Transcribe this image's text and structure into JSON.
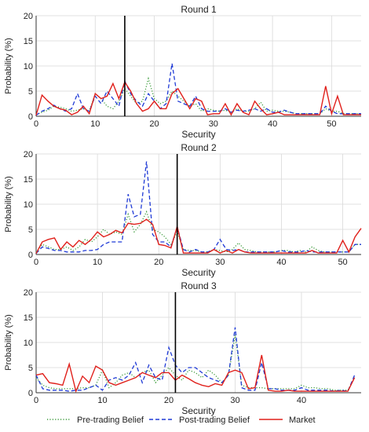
{
  "legend": {
    "position": "bottom",
    "entries": [
      {
        "label": "Pre-trading Belief",
        "color": "#3a9a3a",
        "style": "dotted"
      },
      {
        "label": "Post-trading Belief",
        "color": "#1f3ad6",
        "style": "dashed"
      },
      {
        "label": "Market",
        "color": "#e0201b",
        "style": "solid"
      }
    ]
  },
  "chart_data": [
    {
      "type": "line",
      "title": "Round 1",
      "xlabel": "Security",
      "ylabel": "Probability (%)",
      "xlim": [
        0,
        55
      ],
      "ylim": [
        0,
        20
      ],
      "xticks": [
        0,
        10,
        20,
        30,
        40,
        50
      ],
      "yticks": [
        0,
        5,
        10,
        15,
        20
      ],
      "grid": true,
      "vline": 15,
      "series": [
        {
          "name": "Pre-trading Belief",
          "color": "#3a9a3a",
          "style": "dotted",
          "values": [
            0.3,
            0.8,
            1.2,
            2.0,
            1.8,
            1.5,
            1.0,
            1.2,
            1.5,
            1.0,
            4.5,
            3.5,
            2.0,
            1.5,
            3.0,
            5.5,
            4.0,
            2.5,
            3.0,
            7.5,
            3.5,
            2.5,
            3.0,
            5.0,
            4.0,
            3.0,
            2.0,
            2.5,
            1.0,
            1.5,
            1.2,
            1.0,
            1.2,
            0.8,
            1.5,
            1.0,
            1.0,
            1.5,
            2.8,
            1.0,
            1.2,
            1.0,
            1.0,
            0.8,
            0.5,
            0.5,
            0.5,
            0.5,
            0.5,
            1.5,
            1.0,
            1.0,
            0.5,
            0.5,
            0.5,
            0.5
          ]
        },
        {
          "name": "Post-trading Belief",
          "color": "#1f3ad6",
          "style": "dashed",
          "values": [
            0.2,
            1.0,
            1.5,
            2.2,
            1.5,
            1.0,
            1.5,
            4.5,
            1.5,
            1.0,
            4.0,
            2.5,
            5.0,
            3.5,
            2.0,
            7.0,
            4.5,
            3.0,
            2.0,
            4.5,
            3.0,
            1.5,
            2.5,
            10.5,
            3.0,
            2.5,
            2.0,
            4.0,
            1.5,
            1.0,
            1.0,
            1.0,
            1.5,
            0.8,
            1.2,
            1.0,
            1.2,
            1.5,
            1.0,
            1.5,
            0.8,
            0.8,
            1.2,
            0.8,
            0.5,
            0.5,
            0.5,
            0.5,
            0.5,
            2.0,
            1.0,
            0.5,
            0.5,
            0.5,
            0.5,
            0.5
          ]
        },
        {
          "name": "Market",
          "color": "#e0201b",
          "style": "solid",
          "values": [
            0.2,
            4.2,
            3.0,
            2.0,
            1.5,
            1.2,
            0.3,
            0.8,
            2.0,
            0.5,
            4.5,
            3.5,
            4.0,
            6.5,
            3.5,
            6.8,
            5.0,
            2.5,
            1.0,
            1.5,
            3.0,
            1.5,
            1.5,
            4.5,
            5.5,
            3.5,
            1.5,
            3.5,
            3.0,
            0.3,
            0.5,
            0.5,
            2.5,
            0.3,
            2.5,
            0.8,
            0.3,
            3.0,
            1.5,
            0.3,
            0.5,
            0.8,
            0.3,
            0.3,
            0.3,
            0.3,
            0.3,
            0.3,
            0.3,
            6.0,
            0.5,
            4.0,
            0.3,
            0.3,
            0.3,
            0.3
          ]
        }
      ]
    },
    {
      "type": "line",
      "title": "Round 2",
      "xlabel": "Security",
      "ylabel": "Probability (%)",
      "xlim": [
        0,
        53
      ],
      "ylim": [
        0,
        20
      ],
      "xticks": [
        0,
        10,
        20,
        30,
        40,
        50
      ],
      "yticks": [
        0,
        5,
        10,
        15,
        20
      ],
      "grid": true,
      "vline": 23,
      "series": [
        {
          "name": "Pre-trading Belief",
          "color": "#3a9a3a",
          "style": "dotted",
          "values": [
            0.5,
            2.0,
            1.5,
            1.0,
            1.0,
            1.5,
            0.8,
            1.5,
            3.0,
            2.5,
            3.5,
            5.0,
            4.0,
            4.5,
            4.0,
            8.0,
            4.5,
            6.0,
            8.5,
            5.0,
            4.5,
            3.5,
            2.0,
            4.5,
            1.0,
            0.8,
            0.8,
            0.5,
            0.5,
            1.0,
            0.8,
            0.5,
            1.0,
            2.3,
            1.0,
            0.8,
            0.5,
            0.5,
            0.5,
            0.5,
            0.8,
            0.8,
            0.5,
            0.8,
            0.5,
            1.5,
            0.8,
            0.5,
            0.5,
            0.5,
            0.5,
            0.5,
            2.0,
            2.0
          ]
        },
        {
          "name": "Post-trading Belief",
          "color": "#1f3ad6",
          "style": "dashed",
          "values": [
            0.2,
            1.5,
            1.2,
            0.8,
            0.8,
            0.5,
            0.5,
            0.5,
            0.8,
            0.8,
            1.0,
            2.0,
            2.5,
            2.5,
            2.5,
            12.0,
            7.5,
            8.0,
            18.5,
            4.0,
            2.5,
            2.5,
            1.5,
            5.5,
            1.0,
            0.5,
            1.0,
            0.5,
            0.5,
            1.0,
            3.0,
            1.0,
            0.8,
            1.0,
            0.5,
            0.5,
            0.5,
            0.5,
            0.5,
            0.5,
            0.8,
            0.5,
            0.5,
            0.5,
            0.8,
            0.5,
            0.5,
            0.5,
            0.5,
            0.5,
            0.5,
            0.5,
            2.0,
            2.0
          ]
        },
        {
          "name": "Market",
          "color": "#e0201b",
          "style": "solid",
          "values": [
            0.2,
            2.5,
            3.0,
            3.3,
            1.0,
            2.5,
            1.5,
            2.8,
            2.0,
            3.0,
            4.5,
            3.5,
            4.0,
            4.8,
            4.3,
            6.2,
            6.0,
            6.2,
            7.0,
            6.0,
            2.0,
            1.8,
            1.3,
            5.6,
            0.3,
            0.3,
            0.3,
            0.3,
            0.3,
            1.0,
            0.3,
            0.8,
            0.3,
            1.0,
            0.5,
            0.3,
            0.3,
            0.3,
            0.3,
            0.3,
            0.3,
            0.3,
            0.3,
            0.3,
            0.3,
            0.8,
            0.3,
            0.3,
            0.3,
            0.3,
            2.8,
            0.5,
            3.5,
            5.2
          ]
        }
      ]
    },
    {
      "type": "line",
      "title": "Round 3",
      "xlabel": "Security",
      "ylabel": "Probability (%)",
      "xlim": [
        0,
        49
      ],
      "ylim": [
        0,
        20
      ],
      "xticks": [
        0,
        10,
        20,
        30,
        40
      ],
      "yticks": [
        0,
        5,
        10,
        15,
        20
      ],
      "grid": true,
      "vline": 21,
      "series": [
        {
          "name": "Pre-trading Belief",
          "color": "#3a9a3a",
          "style": "dotted",
          "values": [
            3.0,
            1.5,
            1.0,
            0.8,
            0.8,
            0.8,
            0.8,
            1.0,
            1.0,
            1.5,
            4.5,
            1.0,
            2.0,
            3.5,
            4.0,
            3.0,
            4.0,
            4.5,
            2.0,
            3.5,
            5.0,
            3.5,
            2.5,
            4.5,
            4.0,
            3.0,
            4.5,
            3.5,
            2.0,
            3.5,
            11.5,
            1.5,
            1.0,
            1.0,
            1.0,
            0.8,
            0.8,
            0.8,
            0.8,
            0.8,
            1.5,
            1.0,
            1.0,
            0.8,
            0.8,
            0.5,
            0.5,
            0.5,
            3.0
          ]
        },
        {
          "name": "Post-trading Belief",
          "color": "#1f3ad6",
          "style": "dashed",
          "values": [
            3.5,
            0.8,
            0.5,
            0.5,
            0.5,
            0.3,
            0.5,
            0.5,
            1.0,
            1.5,
            0.5,
            2.5,
            3.0,
            2.5,
            3.5,
            6.0,
            2.0,
            5.5,
            3.0,
            2.5,
            9.0,
            5.5,
            4.0,
            5.0,
            5.0,
            4.0,
            3.0,
            2.5,
            2.0,
            3.5,
            13.0,
            1.0,
            0.5,
            0.5,
            6.0,
            0.8,
            0.8,
            0.5,
            0.5,
            0.5,
            1.0,
            0.5,
            0.5,
            0.5,
            0.5,
            0.3,
            0.5,
            0.3,
            3.5
          ]
        },
        {
          "name": "Market",
          "color": "#e0201b",
          "style": "solid",
          "values": [
            3.5,
            3.8,
            2.0,
            1.8,
            1.5,
            5.7,
            0.3,
            3.3,
            2.0,
            5.3,
            4.5,
            2.0,
            1.5,
            2.0,
            2.5,
            3.0,
            4.0,
            3.5,
            3.0,
            4.0,
            4.0,
            2.5,
            3.5,
            2.8,
            2.0,
            1.5,
            1.2,
            1.8,
            1.5,
            4.0,
            4.5,
            4.0,
            0.8,
            1.0,
            7.5,
            0.5,
            0.3,
            0.3,
            0.5,
            0.3,
            0.3,
            0.3,
            0.3,
            0.3,
            0.3,
            0.3,
            0.3,
            0.3,
            3.0
          ]
        }
      ]
    }
  ]
}
